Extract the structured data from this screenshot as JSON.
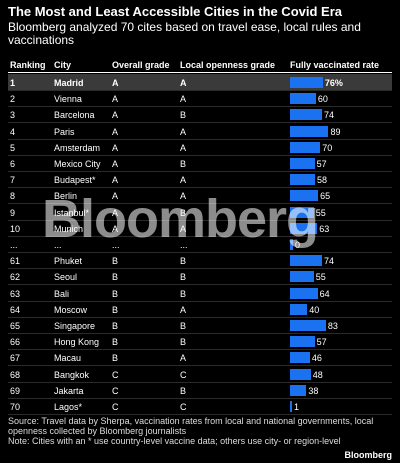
{
  "title": "The Most and Least Accessible Cities in the Covid Era",
  "subtitle": "Bloomberg analyzed 70 cites based on travel ease, local rules and vaccinations",
  "columns": {
    "ranking": "Ranking",
    "city": "City",
    "overall": "Overall grade",
    "openness": "Local openness grade",
    "vaccinated": "Fully vaccinated rate"
  },
  "watermark": "Bloomberg",
  "source": "Source: Travel data by Sherpa, vaccination rates from local and national governments, local openness collected by Bloomberg journalists",
  "note": "Note: Cities with an * use country-level vaccine data; others use city- or region-level",
  "brand": "Bloomberg",
  "colors": {
    "bar": "#1a72f0",
    "highlight_row": "#3a3a3a",
    "background": "#000000"
  },
  "chart_data": {
    "type": "table",
    "value_column": "Fully vaccinated rate",
    "rows": [
      {
        "rank": "1",
        "city": "Madrid",
        "overall": "A",
        "openness": "A",
        "vaccinated": 76,
        "label": "76%",
        "highlight": true
      },
      {
        "rank": "2",
        "city": "Vienna",
        "overall": "A",
        "openness": "A",
        "vaccinated": 60,
        "label": "60"
      },
      {
        "rank": "3",
        "city": "Barcelona",
        "overall": "A",
        "openness": "B",
        "vaccinated": 74,
        "label": "74"
      },
      {
        "rank": "4",
        "city": "Paris",
        "overall": "A",
        "openness": "A",
        "vaccinated": 89,
        "label": "89"
      },
      {
        "rank": "5",
        "city": "Amsterdam",
        "overall": "A",
        "openness": "A",
        "vaccinated": 70,
        "label": "70"
      },
      {
        "rank": "6",
        "city": "Mexico City",
        "overall": "A",
        "openness": "B",
        "vaccinated": 57,
        "label": "57"
      },
      {
        "rank": "7",
        "city": "Budapest*",
        "overall": "A",
        "openness": "A",
        "vaccinated": 58,
        "label": "58"
      },
      {
        "rank": "8",
        "city": "Berlin",
        "overall": "A",
        "openness": "A",
        "vaccinated": 65,
        "label": "65"
      },
      {
        "rank": "9",
        "city": "Istanbul*",
        "overall": "A",
        "openness": "B",
        "vaccinated": 55,
        "label": "55"
      },
      {
        "rank": "10",
        "city": "Munich",
        "overall": "A",
        "openness": "A",
        "vaccinated": 63,
        "label": "63"
      },
      {
        "rank": "...",
        "city": "...",
        "overall": "...",
        "openness": "...",
        "vaccinated": 0,
        "label": "0"
      },
      {
        "rank": "61",
        "city": "Phuket",
        "overall": "B",
        "openness": "B",
        "vaccinated": 74,
        "label": "74"
      },
      {
        "rank": "62",
        "city": "Seoul",
        "overall": "B",
        "openness": "B",
        "vaccinated": 55,
        "label": "55"
      },
      {
        "rank": "63",
        "city": "Bali",
        "overall": "B",
        "openness": "B",
        "vaccinated": 64,
        "label": "64"
      },
      {
        "rank": "64",
        "city": "Moscow",
        "overall": "B",
        "openness": "A",
        "vaccinated": 40,
        "label": "40"
      },
      {
        "rank": "65",
        "city": "Singapore",
        "overall": "B",
        "openness": "B",
        "vaccinated": 83,
        "label": "83"
      },
      {
        "rank": "66",
        "city": "Hong Kong",
        "overall": "B",
        "openness": "B",
        "vaccinated": 57,
        "label": "57"
      },
      {
        "rank": "67",
        "city": "Macau",
        "overall": "B",
        "openness": "A",
        "vaccinated": 46,
        "label": "46"
      },
      {
        "rank": "68",
        "city": "Bangkok",
        "overall": "C",
        "openness": "C",
        "vaccinated": 48,
        "label": "48"
      },
      {
        "rank": "69",
        "city": "Jakarta",
        "overall": "C",
        "openness": "B",
        "vaccinated": 38,
        "label": "38"
      },
      {
        "rank": "70",
        "city": "Lagos*",
        "overall": "C",
        "openness": "C",
        "vaccinated": 1,
        "label": "1"
      }
    ]
  }
}
